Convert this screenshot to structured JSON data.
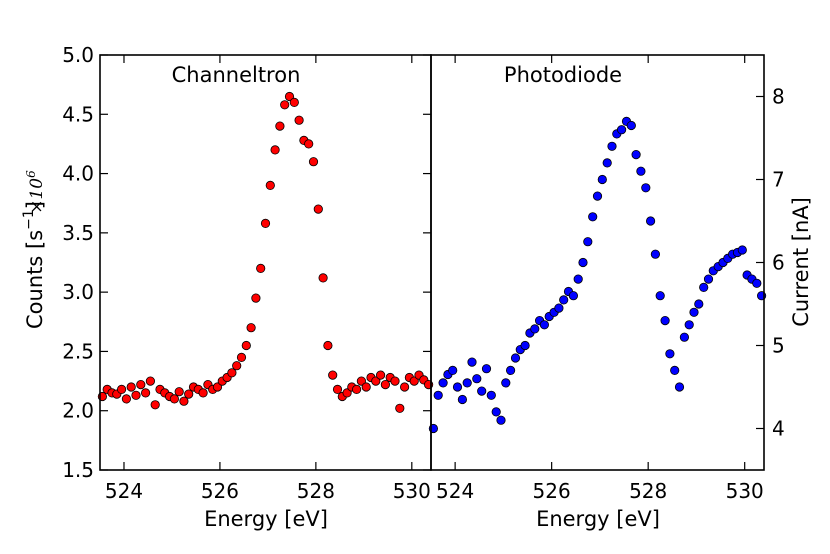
{
  "chart_data": [
    {
      "type": "scatter",
      "title": "Channeltron",
      "xlabel": "Energy [eV]",
      "ylabel": "Counts [s",
      "ylabel_sup": "−1",
      "ylabel_end": "]",
      "scale_prefix": "×10",
      "scale_exp": "6",
      "xlim": [
        523.5,
        530.4
      ],
      "ylim": [
        1.5,
        5.0
      ],
      "xticks": [
        524,
        526,
        528,
        530
      ],
      "xtick_labels": [
        "524",
        "526",
        "528",
        "530"
      ],
      "yticks": [
        1.5,
        2.0,
        2.5,
        3.0,
        3.5,
        4.0,
        4.5,
        5.0
      ],
      "ytick_labels": [
        "1.5",
        "2.0",
        "2.5",
        "3.0",
        "3.5",
        "4.0",
        "4.5",
        "5.0"
      ],
      "grid": false,
      "color": "#ff0000",
      "series": [
        {
          "x": [
            523.55,
            523.65,
            523.75,
            523.85,
            523.95,
            524.05,
            524.15,
            524.25,
            524.35,
            524.45,
            524.55,
            524.65,
            524.75,
            524.85,
            524.95,
            525.05,
            525.15,
            525.25,
            525.35,
            525.45,
            525.55,
            525.65,
            525.75,
            525.85,
            525.95,
            526.05,
            526.15,
            526.25,
            526.35,
            526.45,
            526.55,
            526.65,
            526.75,
            526.85,
            526.95,
            527.05,
            527.15,
            527.25,
            527.35,
            527.45,
            527.55,
            527.65,
            527.75,
            527.85,
            527.95,
            528.05,
            528.15,
            528.25,
            528.35,
            528.45,
            528.55,
            528.65,
            528.75,
            528.85,
            528.95,
            529.05,
            529.15,
            529.25,
            529.35,
            529.45,
            529.55,
            529.65,
            529.75,
            529.85,
            529.95,
            530.05,
            530.15,
            530.25,
            530.35
          ],
          "y": [
            2.12,
            2.18,
            2.15,
            2.14,
            2.18,
            2.1,
            2.2,
            2.13,
            2.22,
            2.15,
            2.25,
            2.05,
            2.18,
            2.15,
            2.12,
            2.1,
            2.16,
            2.08,
            2.14,
            2.2,
            2.18,
            2.15,
            2.22,
            2.18,
            2.2,
            2.25,
            2.28,
            2.32,
            2.38,
            2.45,
            2.55,
            2.7,
            2.95,
            3.2,
            3.58,
            3.9,
            4.2,
            4.4,
            4.58,
            4.65,
            4.6,
            4.45,
            4.28,
            4.25,
            4.1,
            3.7,
            3.12,
            2.55,
            2.3,
            2.18,
            2.12,
            2.15,
            2.2,
            2.18,
            2.25,
            2.2,
            2.28,
            2.25,
            2.3,
            2.22,
            2.28,
            2.25,
            2.02,
            2.2,
            2.28,
            2.25,
            2.3,
            2.26,
            2.22
          ]
        }
      ]
    },
    {
      "type": "scatter",
      "title": "Photodiode",
      "xlabel": "Energy [eV]",
      "ylabel": "Current [nA]",
      "xlim": [
        523.5,
        530.4
      ],
      "ylim": [
        3.5,
        8.5
      ],
      "xticks": [
        524,
        526,
        528,
        530
      ],
      "xtick_labels": [
        "524",
        "526",
        "528",
        "530"
      ],
      "yticks": [
        4,
        5,
        6,
        7,
        8
      ],
      "ytick_labels": [
        "4",
        "5",
        "6",
        "7",
        "8"
      ],
      "grid": false,
      "color": "#0000ff",
      "series": [
        {
          "x": [
            523.55,
            523.65,
            523.75,
            523.85,
            523.95,
            524.05,
            524.15,
            524.25,
            524.35,
            524.45,
            524.55,
            524.65,
            524.75,
            524.85,
            524.95,
            525.05,
            525.15,
            525.25,
            525.35,
            525.45,
            525.55,
            525.65,
            525.75,
            525.85,
            525.95,
            526.05,
            526.15,
            526.25,
            526.35,
            526.45,
            526.55,
            526.65,
            526.75,
            526.85,
            526.95,
            527.05,
            527.15,
            527.25,
            527.35,
            527.45,
            527.55,
            527.65,
            527.75,
            527.85,
            527.95,
            528.05,
            528.15,
            528.25,
            528.35,
            528.45,
            528.55,
            528.65,
            528.75,
            528.85,
            528.95,
            529.05,
            529.15,
            529.25,
            529.35,
            529.45,
            529.55,
            529.65,
            529.75,
            529.85,
            529.95,
            530.05,
            530.15,
            530.25,
            530.35
          ],
          "y": [
            4.0,
            4.4,
            4.55,
            4.65,
            4.7,
            4.5,
            4.35,
            4.55,
            4.8,
            4.6,
            4.45,
            4.72,
            4.4,
            4.2,
            4.1,
            4.55,
            4.7,
            4.85,
            4.95,
            5.0,
            5.15,
            5.2,
            5.3,
            5.25,
            5.35,
            5.4,
            5.45,
            5.55,
            5.65,
            5.6,
            5.8,
            6.0,
            6.25,
            6.55,
            6.8,
            7.0,
            7.2,
            7.4,
            7.55,
            7.6,
            7.7,
            7.65,
            7.3,
            7.1,
            6.9,
            6.5,
            6.1,
            5.6,
            5.3,
            4.9,
            4.7,
            4.5,
            5.1,
            5.25,
            5.4,
            5.5,
            5.7,
            5.8,
            5.9,
            5.95,
            6.0,
            6.05,
            6.1,
            6.12,
            6.15,
            5.85,
            5.8,
            5.75,
            5.6
          ]
        }
      ]
    }
  ]
}
